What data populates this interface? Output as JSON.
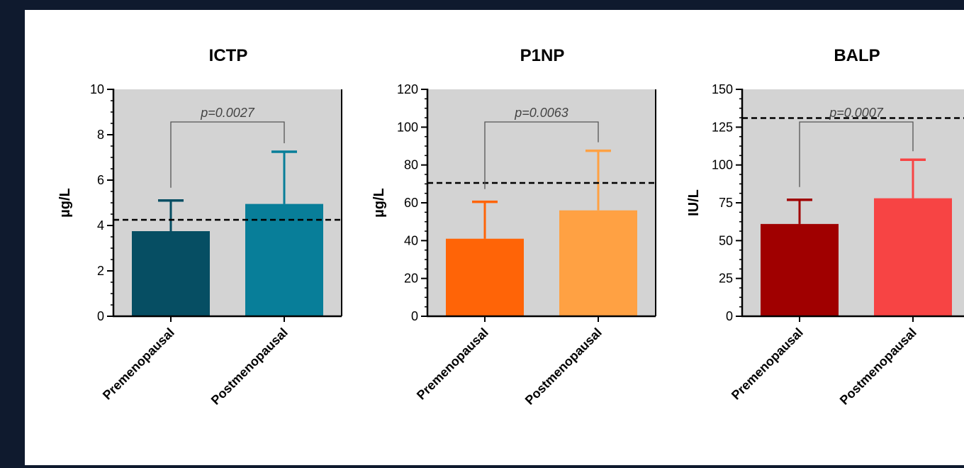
{
  "chart_data": [
    {
      "type": "bar",
      "title": "ICTP",
      "ylabel": "µg/L",
      "ylim": [
        0,
        10
      ],
      "yticks": [
        "0",
        "2",
        "4",
        "6",
        "8",
        "10"
      ],
      "categories": [
        "Premenopausal",
        "Postmenopausal"
      ],
      "values": [
        3.75,
        4.95
      ],
      "error_upper": [
        5.1,
        7.25
      ],
      "reference_line": 4.25,
      "annotation": "p=0.0027",
      "colors": [
        "#064e63",
        "#087e99"
      ],
      "plot_background": "#d3d3d3",
      "grid": false
    },
    {
      "type": "bar",
      "title": "P1NP",
      "ylabel": "µg/L",
      "ylim": [
        0,
        120
      ],
      "yticks": [
        "0",
        "20",
        "40",
        "60",
        "80",
        "100",
        "120"
      ],
      "categories": [
        "Premenopausal",
        "Postmenopausal"
      ],
      "values": [
        41,
        56
      ],
      "error_upper": [
        60.5,
        87.5
      ],
      "reference_line": 70.5,
      "annotation": "p=0.0063",
      "colors": [
        "#ff6407",
        "#ffa143"
      ],
      "plot_background": "#d3d3d3",
      "grid": false
    },
    {
      "type": "bar",
      "title": "BALP",
      "ylabel": "IU/L",
      "ylim": [
        0,
        150
      ],
      "yticks": [
        "0",
        "25",
        "50",
        "75",
        "100",
        "125",
        "150"
      ],
      "categories": [
        "Premenopausal",
        "Postmenopausal"
      ],
      "values": [
        61,
        78
      ],
      "error_upper": [
        77,
        103.5
      ],
      "reference_line": 131,
      "annotation": "p=0.0007",
      "colors": [
        "#a00000",
        "#f74444"
      ],
      "plot_background": "#d3d3d3",
      "grid": false
    }
  ]
}
